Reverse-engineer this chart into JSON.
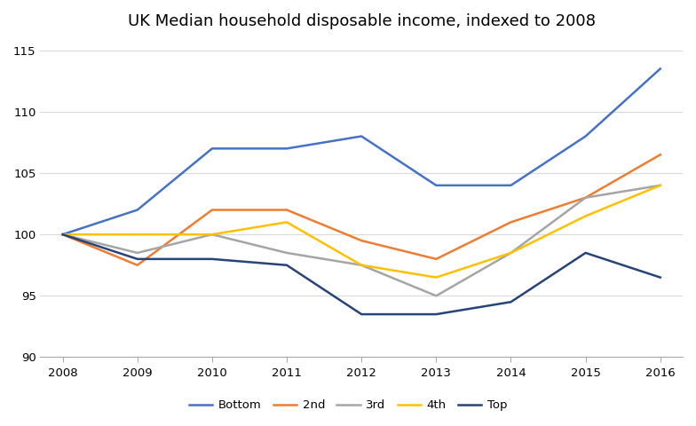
{
  "title": "UK Median household disposable income, indexed to 2008",
  "years": [
    2008,
    2009,
    2010,
    2011,
    2012,
    2013,
    2014,
    2015,
    2016
  ],
  "series_order": [
    "Bottom",
    "2nd",
    "3rd",
    "4th",
    "Top"
  ],
  "series": {
    "Bottom": [
      100.0,
      102.0,
      107.0,
      107.0,
      108.0,
      104.0,
      104.0,
      108.0,
      113.5
    ],
    "2nd": [
      100.0,
      97.5,
      102.0,
      102.0,
      99.5,
      98.0,
      101.0,
      103.0,
      106.5
    ],
    "3rd": [
      100.0,
      98.5,
      100.0,
      98.5,
      97.5,
      95.0,
      98.5,
      103.0,
      104.0
    ],
    "4th": [
      100.0,
      100.0,
      100.0,
      101.0,
      97.5,
      96.5,
      98.5,
      101.5,
      104.0
    ],
    "Top": [
      100.0,
      98.0,
      98.0,
      97.5,
      93.5,
      93.5,
      94.5,
      98.5,
      96.5
    ]
  },
  "colors": {
    "Bottom": "#4472C4",
    "2nd": "#ED7D31",
    "3rd": "#A5A5A5",
    "4th": "#FFC000",
    "Top": "#264478"
  },
  "ylim": [
    90,
    116
  ],
  "yticks": [
    90,
    95,
    100,
    105,
    110,
    115
  ],
  "background_color": "#FFFFFF",
  "grid_color": "#D9D9D9",
  "title_fontsize": 13,
  "legend_ncol": 5,
  "linewidth": 1.8
}
